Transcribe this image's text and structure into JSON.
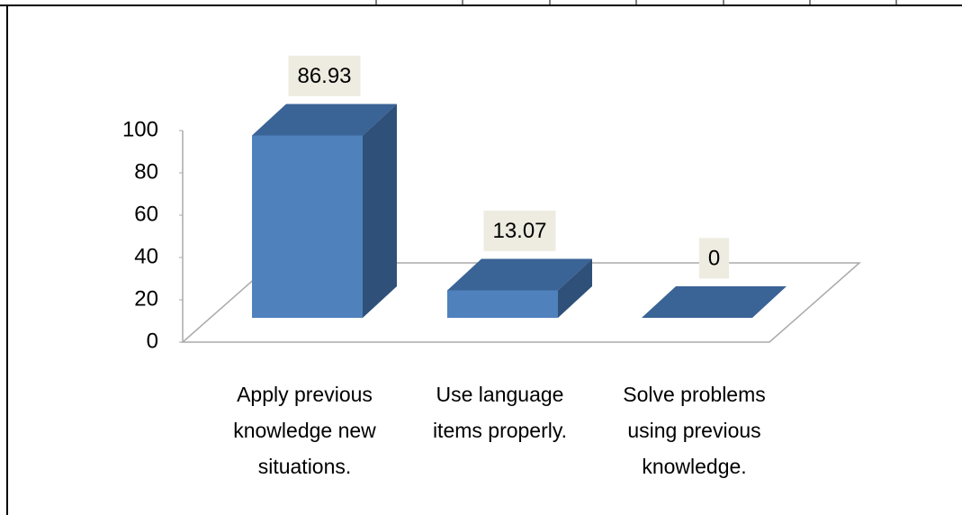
{
  "chart_data": {
    "type": "bar3d",
    "categories": [
      "Apply previous knowledge new situations.",
      "Use language items properly.",
      "Solve problems using previous knowledge."
    ],
    "values": [
      86.93,
      13.07,
      0
    ],
    "color": "#4f81bd",
    "ylim": [
      0,
      100
    ],
    "yticks": [
      0,
      20,
      40,
      60,
      80,
      100
    ]
  }
}
